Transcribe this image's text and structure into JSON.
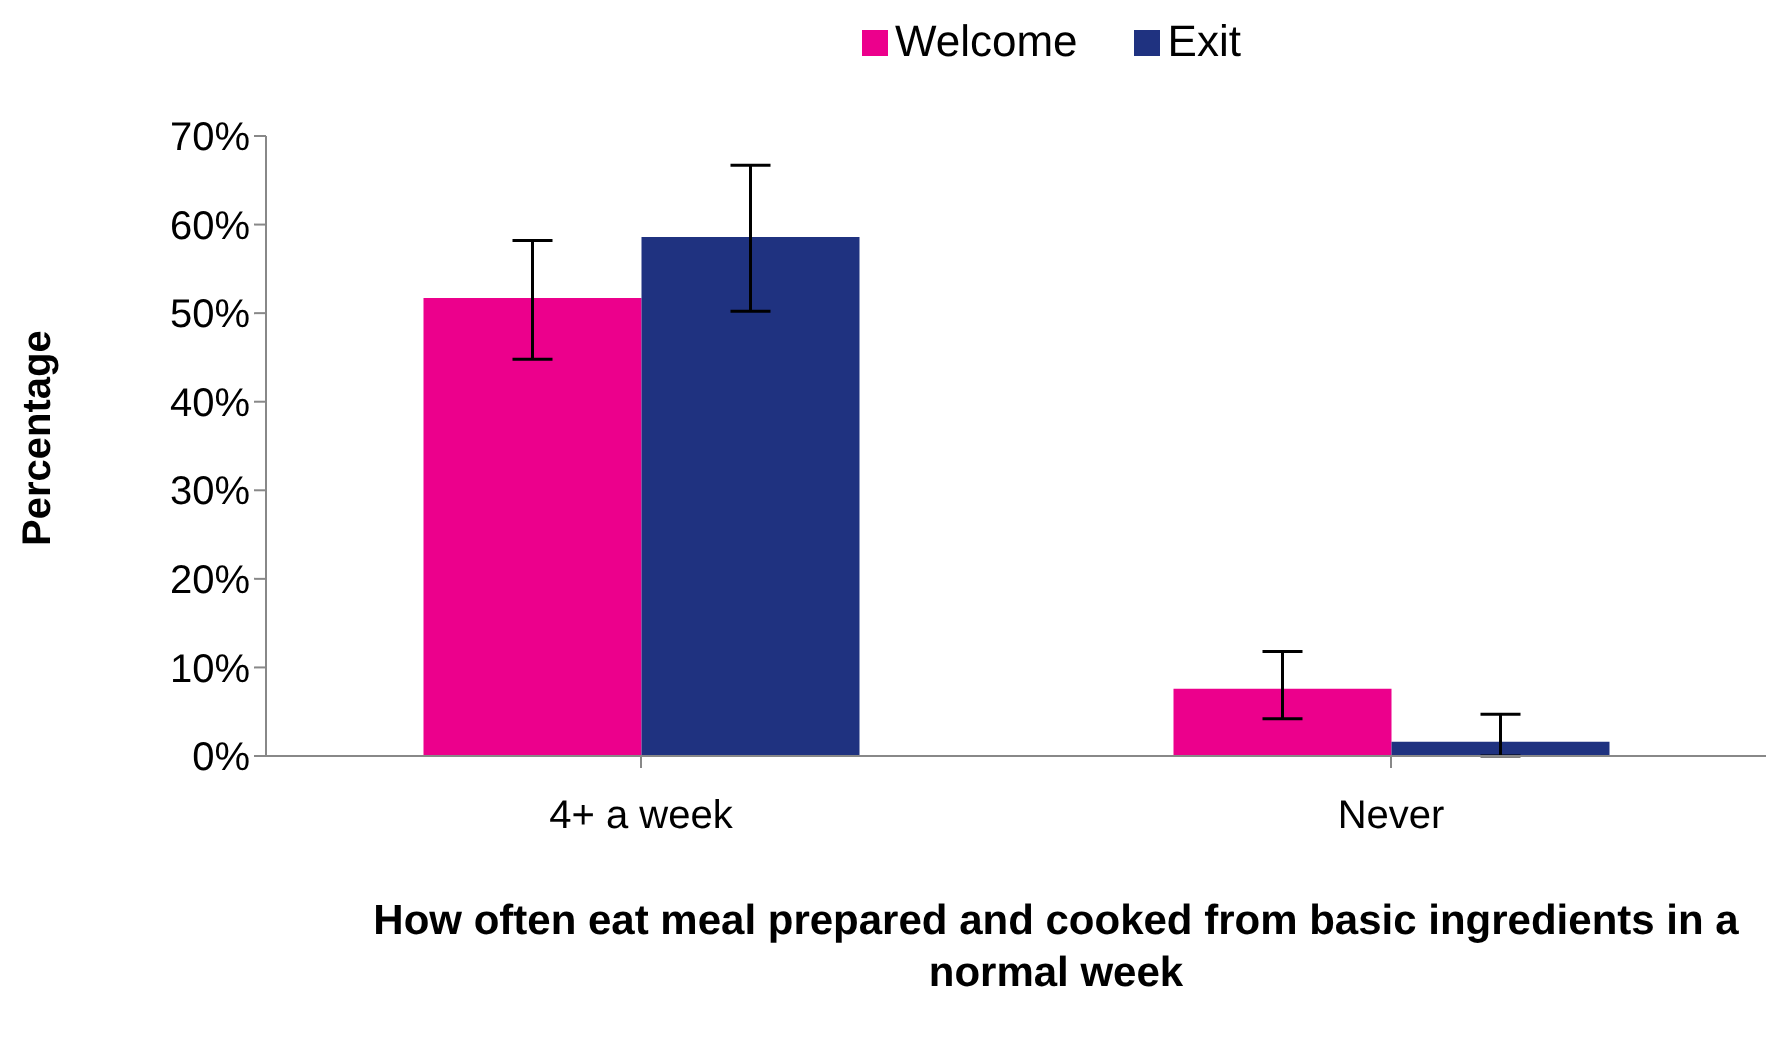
{
  "chart_data": {
    "type": "bar",
    "xlabel": "How often eat meal prepared and cooked from basic ingredients in a normal week",
    "ylabel": "Percentage",
    "categories": [
      "4+ a week",
      "Never"
    ],
    "series": [
      {
        "name": "Welcome",
        "color": "#ec008c",
        "values": [
          51.7,
          7.6
        ],
        "errors": [
          [
            44.8,
            58.2
          ],
          [
            4.2,
            11.8
          ]
        ]
      },
      {
        "name": "Exit",
        "color": "#1f3280",
        "values": [
          58.6,
          1.6
        ],
        "errors": [
          [
            50.2,
            66.7
          ],
          [
            0,
            4.7
          ]
        ]
      }
    ],
    "ylim": [
      0,
      70
    ],
    "yticks": [
      {
        "value": 0,
        "label": "0%"
      },
      {
        "value": 10,
        "label": "10%"
      },
      {
        "value": 20,
        "label": "20%"
      },
      {
        "value": 30,
        "label": "30%"
      },
      {
        "value": 40,
        "label": "40%"
      },
      {
        "value": 50,
        "label": "50%"
      },
      {
        "value": 60,
        "label": "60%"
      },
      {
        "value": 70,
        "label": "70%"
      }
    ],
    "grid": false,
    "legend": "top"
  }
}
